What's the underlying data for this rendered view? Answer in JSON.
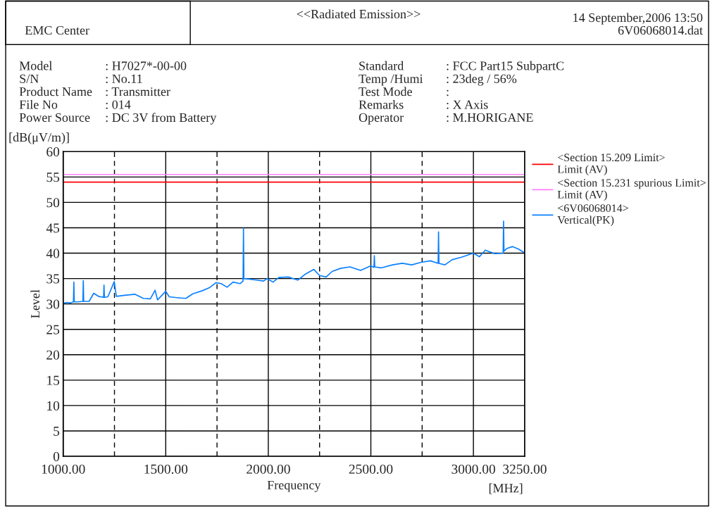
{
  "chart_data": {
    "type": "line",
    "title": "<<Radiated Emission>>",
    "xlabel": "Frequency",
    "ylabel": "Level",
    "annotations": [
      "EMC Center",
      "14 September,2006 13:50",
      "6V06068014.dat",
      "Model",
      ": H7027*-00-00",
      "S/N",
      ": No.11",
      "Product Name",
      ": Transmitter",
      "File No",
      ": 014",
      "Power Source",
      ": DC 3V from Battery",
      "Standard",
      ": FCC Part15 SubpartC",
      "Temp /Humi",
      ": 23deg / 56%",
      "Test Mode",
      ":",
      "Remarks",
      ": X Axis",
      "Operator",
      ": M.HORIGANE",
      "[dB(μV/m)]",
      "[MHz]"
    ],
    "xlim": [
      1000,
      3250
    ],
    "xticks": [
      {
        "value": 1000,
        "label": "1000.00"
      },
      {
        "value": 1250,
        "label": null
      },
      {
        "value": 1500,
        "label": "1500.00"
      },
      {
        "value": 1750,
        "label": null
      },
      {
        "value": 2000,
        "label": "2000.00"
      },
      {
        "value": 2250,
        "label": null
      },
      {
        "value": 2500,
        "label": "2500.00"
      },
      {
        "value": 2750,
        "label": null
      },
      {
        "value": 3000,
        "label": "3000.00"
      },
      {
        "value": 3250,
        "label": "3250.00"
      }
    ],
    "ylim": [
      0,
      60
    ],
    "yticks": [
      0,
      5,
      10,
      15,
      20,
      25,
      30,
      35,
      40,
      45,
      50,
      55,
      60
    ],
    "grid": true,
    "legend": "top right",
    "series": [
      {
        "name": "<Section 15.209 Limit>\nLimit (AV)",
        "color": "#ff0000",
        "x": [
          1000,
          3250
        ],
        "values": [
          54,
          54
        ]
      },
      {
        "name": "<Section 15.231 spurious Limit>\nLimit (AV)",
        "color": "#ff80ff",
        "x": [
          1000,
          3250
        ],
        "values": [
          55.5,
          55.5
        ]
      },
      {
        "name": "<6V06068014>\nVertical(PK)",
        "color": "#0a80ff",
        "x": [
          1000,
          1017,
          1034,
          1050,
          1052,
          1054,
          1069,
          1096,
          1098,
          1100,
          1126,
          1149,
          1172,
          1197,
          1199,
          1201,
          1218,
          1249,
          1259,
          1299,
          1351,
          1391,
          1425,
          1448,
          1460,
          1500,
          1517,
          1563,
          1598,
          1632,
          1678,
          1713,
          1745,
          1770,
          1799,
          1828,
          1862,
          1877,
          1879,
          1881,
          1908,
          1943,
          1977,
          1994,
          2023,
          2051,
          2097,
          2144,
          2178,
          2222,
          2250,
          2282,
          2311,
          2352,
          2398,
          2450,
          2500,
          2515,
          2517,
          2519,
          2549,
          2606,
          2653,
          2699,
          2745,
          2791,
          2828,
          2830,
          2832,
          2861,
          2896,
          2942,
          3000,
          3029,
          3058,
          3104,
          3145,
          3147,
          3149,
          3162,
          3191,
          3220,
          3248
        ],
        "values": [
          30.1,
          30.3,
          30.2,
          30.4,
          34.3,
          30.4,
          30.4,
          30.5,
          34.6,
          30.5,
          30.5,
          32.1,
          31.5,
          31.3,
          33.7,
          31.3,
          31.4,
          34.4,
          31.5,
          31.7,
          31.9,
          31.1,
          31.0,
          32.7,
          30.8,
          32.5,
          31.4,
          31.2,
          31.1,
          32.0,
          32.6,
          33.2,
          34.2,
          34.0,
          33.3,
          34.3,
          34.0,
          34.5,
          44.9,
          35.0,
          34.9,
          34.7,
          34.5,
          35.0,
          34.3,
          35.2,
          35.3,
          34.7,
          35.8,
          36.8,
          35.6,
          35.3,
          36.4,
          37.0,
          37.3,
          36.6,
          37.5,
          37.2,
          39.5,
          37.3,
          37.1,
          37.7,
          38.0,
          37.7,
          38.2,
          38.5,
          38.0,
          44.2,
          38.0,
          37.7,
          38.7,
          39.2,
          40.0,
          39.3,
          40.6,
          39.9,
          40.0,
          46.3,
          40.4,
          40.9,
          41.3,
          40.8,
          40.1
        ]
      }
    ]
  }
}
